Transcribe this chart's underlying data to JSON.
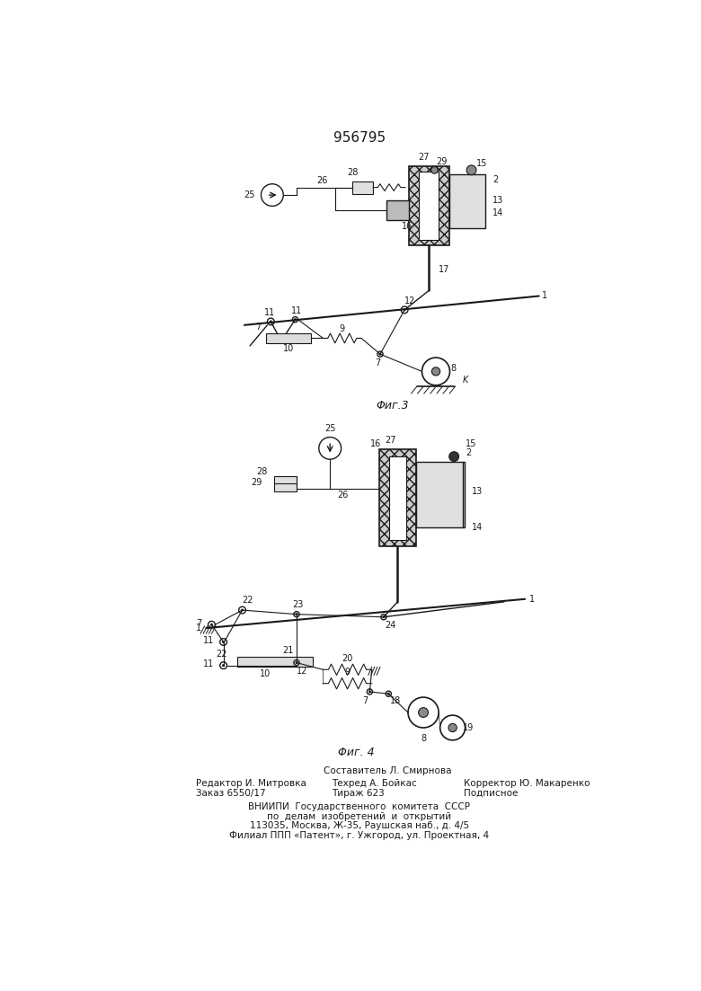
{
  "title_number": "956795",
  "footer_line1": "Составитель Л. Смирнова",
  "footer_left1": "Редактор И. Митровка",
  "footer_left2": "Заказ 6550/17",
  "footer_mid1": "Техред А. Бойкас",
  "footer_mid2": "Тираж 623",
  "footer_right1": "Корректор Ю. Макаренко",
  "footer_right2": "Подписное",
  "footer_vnipi1": "ВНИИПИ  Государственного  комитета  СССР",
  "footer_vnipi2": "по  делам  изобретений  и  открытий",
  "footer_vnipi3": "113035, Москва, Ж-35, Раушская наб., д. 4/5",
  "footer_vnipi4": "Филиал ППП «Патент», г. Ужгород, ул. Проектная, 4",
  "bg_color": "#ffffff",
  "line_color": "#1a1a1a",
  "text_color": "#1a1a1a",
  "fig3_caption": "Φиг.3",
  "fig4_caption": "Φиг. 4"
}
